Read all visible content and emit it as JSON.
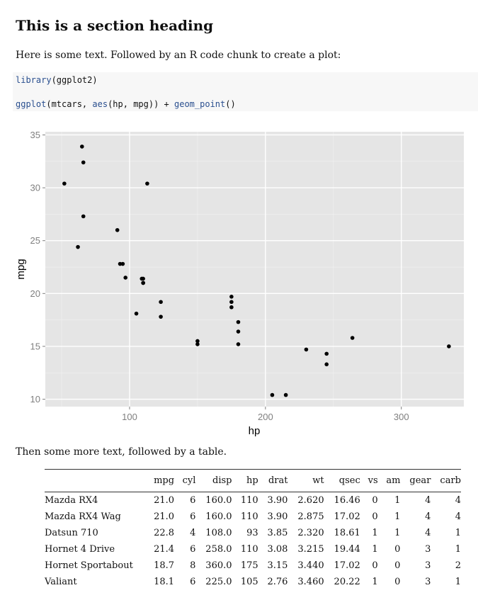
{
  "heading": "This is a section heading",
  "intro_text": "Here is some text. Followed by an R code chunk to create a plot:",
  "code_lines": [
    [
      {
        "t": "library",
        "fn": true
      },
      {
        "t": "(ggplot2)",
        "fn": false
      }
    ],
    [
      {
        "t": "ggplot",
        "fn": true
      },
      {
        "t": "(mtcars, ",
        "fn": false
      },
      {
        "t": "aes",
        "fn": true
      },
      {
        "t": "(hp, mpg)) + ",
        "fn": false
      },
      {
        "t": "geom_point",
        "fn": true
      },
      {
        "t": "()",
        "fn": false
      }
    ]
  ],
  "after_plot_text": "Then some more text, followed by a table.",
  "chart_data": {
    "type": "scatter",
    "xlabel": "hp",
    "ylabel": "mpg",
    "xlim": [
      38,
      346
    ],
    "ylim": [
      9.3,
      35.3
    ],
    "xticks": [
      100,
      200,
      300
    ],
    "yticks": [
      10,
      15,
      20,
      25,
      30,
      35
    ],
    "grid": true,
    "points": [
      [
        110,
        21.0
      ],
      [
        110,
        21.0
      ],
      [
        93,
        22.8
      ],
      [
        110,
        21.4
      ],
      [
        175,
        18.7
      ],
      [
        105,
        18.1
      ],
      [
        245,
        14.3
      ],
      [
        62,
        24.4
      ],
      [
        95,
        22.8
      ],
      [
        123,
        19.2
      ],
      [
        123,
        17.8
      ],
      [
        180,
        16.4
      ],
      [
        180,
        17.3
      ],
      [
        180,
        15.2
      ],
      [
        205,
        10.4
      ],
      [
        215,
        10.4
      ],
      [
        230,
        14.7
      ],
      [
        66,
        32.4
      ],
      [
        52,
        30.4
      ],
      [
        65,
        33.9
      ],
      [
        97,
        21.5
      ],
      [
        150,
        15.5
      ],
      [
        150,
        15.2
      ],
      [
        245,
        13.3
      ],
      [
        175,
        19.2
      ],
      [
        66,
        27.3
      ],
      [
        91,
        26.0
      ],
      [
        113,
        30.4
      ],
      [
        264,
        15.8
      ],
      [
        175,
        19.7
      ],
      [
        335,
        15.0
      ],
      [
        109,
        21.4
      ]
    ]
  },
  "table": {
    "headers": [
      "",
      "mpg",
      "cyl",
      "disp",
      "hp",
      "drat",
      "wt",
      "qsec",
      "vs",
      "am",
      "gear",
      "carb"
    ],
    "rows": [
      [
        "Mazda RX4",
        "21.0",
        "6",
        "160.0",
        "110",
        "3.90",
        "2.620",
        "16.46",
        "0",
        "1",
        "4",
        "4"
      ],
      [
        "Mazda RX4 Wag",
        "21.0",
        "6",
        "160.0",
        "110",
        "3.90",
        "2.875",
        "17.02",
        "0",
        "1",
        "4",
        "4"
      ],
      [
        "Datsun 710",
        "22.8",
        "4",
        "108.0",
        "93",
        "3.85",
        "2.320",
        "18.61",
        "1",
        "1",
        "4",
        "1"
      ],
      [
        "Hornet 4 Drive",
        "21.4",
        "6",
        "258.0",
        "110",
        "3.08",
        "3.215",
        "19.44",
        "1",
        "0",
        "3",
        "1"
      ],
      [
        "Hornet Sportabout",
        "18.7",
        "8",
        "360.0",
        "175",
        "3.15",
        "3.440",
        "17.02",
        "0",
        "0",
        "3",
        "2"
      ],
      [
        "Valiant",
        "18.1",
        "6",
        "225.0",
        "105",
        "2.76",
        "3.460",
        "20.22",
        "1",
        "0",
        "3",
        "1"
      ]
    ]
  }
}
